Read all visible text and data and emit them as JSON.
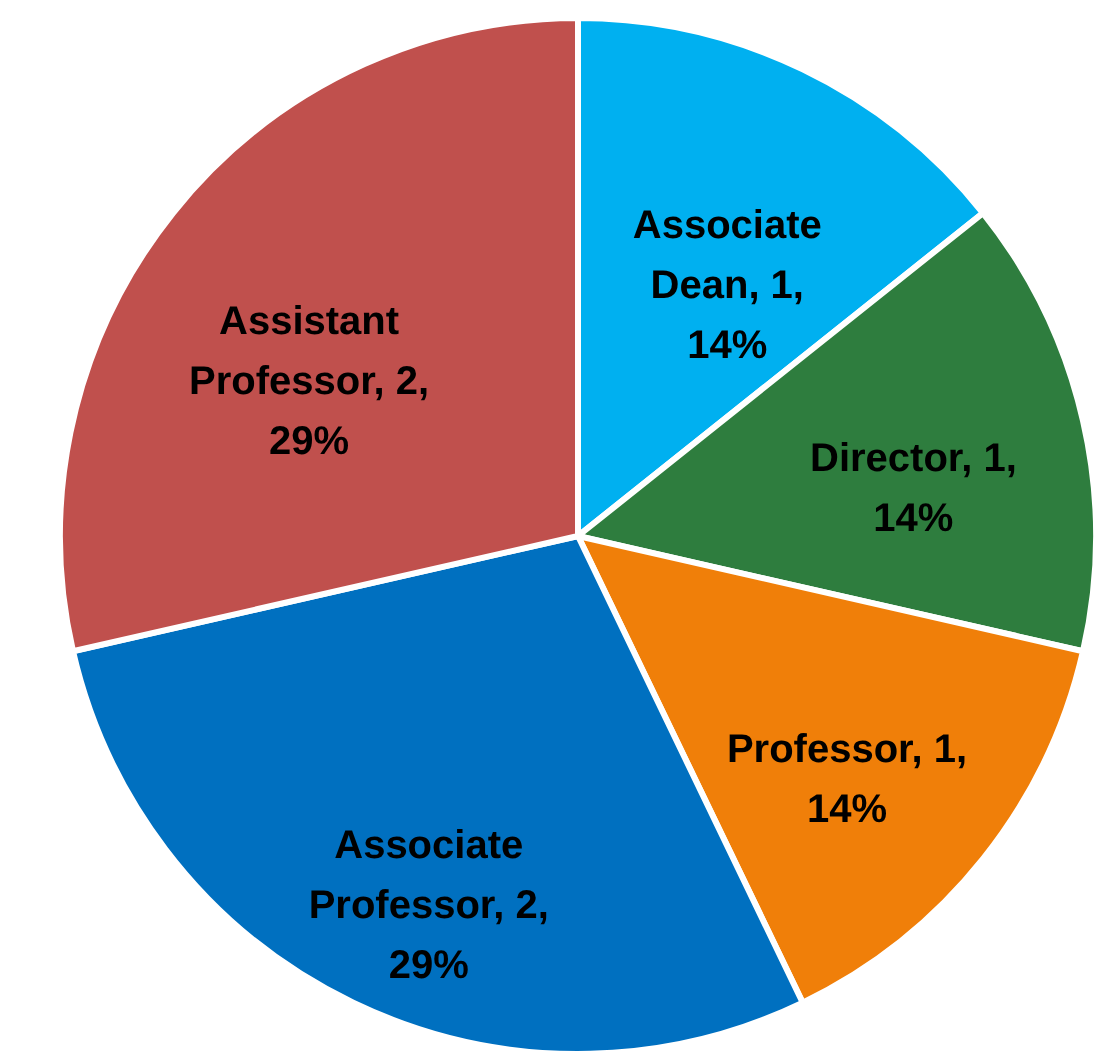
{
  "chart_data": {
    "type": "pie",
    "categories": [
      "Associate Dean",
      "Director",
      "Professor",
      "Associate Professor",
      "Assistant Professor"
    ],
    "values": [
      1,
      1,
      1,
      2,
      2
    ],
    "value_labels": [
      "1, 14%",
      "1, 14%",
      "1, 14%",
      "2, 29%",
      "2, 29%"
    ],
    "colors": [
      "#00b0f0",
      "#2e7d3e",
      "#f07f09",
      "#0070c0",
      "#c0504d"
    ]
  }
}
